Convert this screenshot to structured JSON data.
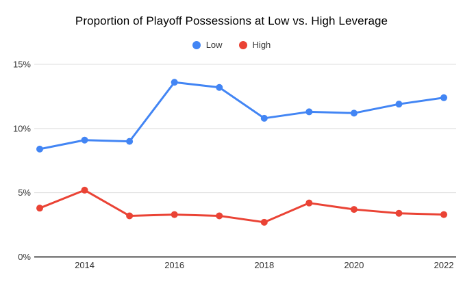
{
  "chart_data": {
    "type": "line",
    "title": "Proportion of Playoff Possessions at Low vs. High Leverage",
    "x": [
      2013,
      2014,
      2015,
      2016,
      2017,
      2018,
      2019,
      2020,
      2021,
      2022
    ],
    "series": [
      {
        "name": "Low",
        "color": "#4285F4",
        "values": [
          8.4,
          9.1,
          9.0,
          13.6,
          13.2,
          10.8,
          11.3,
          11.2,
          11.9,
          12.4
        ]
      },
      {
        "name": "High",
        "color": "#EA4335",
        "values": [
          3.8,
          5.2,
          3.2,
          3.3,
          3.2,
          2.7,
          4.2,
          3.7,
          3.4,
          3.3
        ]
      }
    ],
    "ylabel": "",
    "xlabel": "",
    "ylim": [
      0,
      15
    ],
    "y_tick_step": 5,
    "y_tick_labels": [
      "0%",
      "5%",
      "10%",
      "15%"
    ],
    "x_tick_labels": [
      "2014",
      "2016",
      "2018",
      "2020",
      "2022"
    ],
    "legend_position": "top",
    "grid": true,
    "colors": {
      "gridline": "#dddddd",
      "axis_baseline": "#333333",
      "tick_text": "#333333",
      "title_text": "#000000",
      "background": "#ffffff"
    }
  }
}
